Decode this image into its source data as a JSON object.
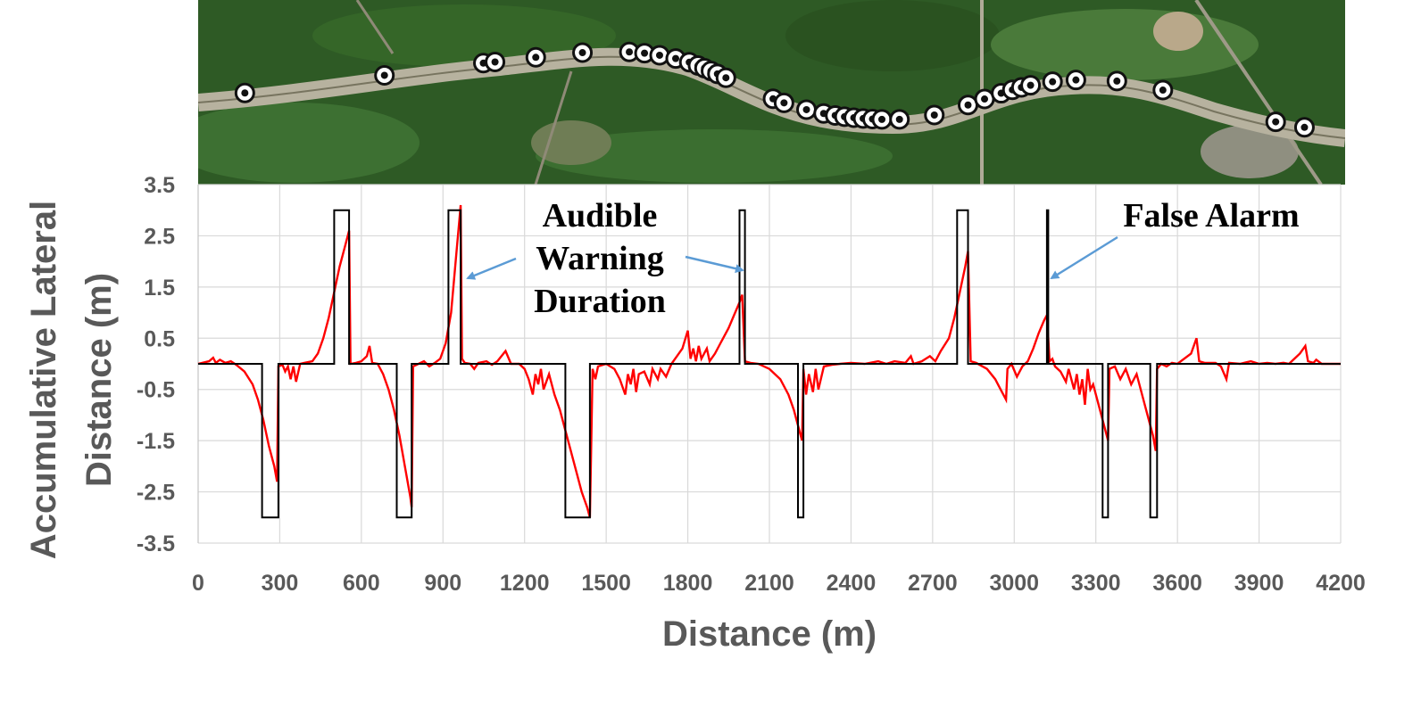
{
  "chart_data": {
    "type": "line",
    "xlabel": "Distance (m)",
    "ylabel_lines": [
      "Accumulative Lateral",
      "Distance (m)"
    ],
    "xlim": [
      0,
      4200
    ],
    "ylim": [
      -3.5,
      3.5
    ],
    "x_ticks": [
      0,
      300,
      600,
      900,
      1200,
      1500,
      1800,
      2100,
      2400,
      2700,
      3000,
      3300,
      3600,
      3900,
      4200
    ],
    "y_ticks": [
      3.5,
      2.5,
      1.5,
      0.5,
      -0.5,
      -1.5,
      -2.5,
      -3.5
    ],
    "y_tick_labels": [
      "3.5",
      "2.5",
      "1.5",
      "0.5",
      "-0.5",
      "-1.5",
      "-2.5",
      "-3.5"
    ],
    "grid": true,
    "series": [
      {
        "color": "#ff0000",
        "points": [
          [
            0,
            0
          ],
          [
            40,
            0.05
          ],
          [
            55,
            0.12
          ],
          [
            65,
            0.02
          ],
          [
            80,
            0.08
          ],
          [
            100,
            0.02
          ],
          [
            120,
            0.05
          ],
          [
            140,
            -0.02
          ],
          [
            170,
            -0.15
          ],
          [
            200,
            -0.4
          ],
          [
            220,
            -0.7
          ],
          [
            240,
            -1.1
          ],
          [
            260,
            -1.6
          ],
          [
            280,
            -2.0
          ],
          [
            290,
            -2.3
          ],
          [
            295,
            -0.05
          ],
          [
            310,
            -0.02
          ],
          [
            320,
            -0.15
          ],
          [
            330,
            -0.05
          ],
          [
            340,
            -0.3
          ],
          [
            350,
            -0.05
          ],
          [
            360,
            -0.35
          ],
          [
            375,
            0
          ],
          [
            390,
            0.02
          ],
          [
            420,
            0.05
          ],
          [
            440,
            0.2
          ],
          [
            460,
            0.5
          ],
          [
            480,
            0.9
          ],
          [
            500,
            1.4
          ],
          [
            520,
            1.9
          ],
          [
            540,
            2.3
          ],
          [
            555,
            2.6
          ],
          [
            560,
            0
          ],
          [
            580,
            0.02
          ],
          [
            600,
            0.05
          ],
          [
            620,
            0.15
          ],
          [
            630,
            0.35
          ],
          [
            640,
            0.02
          ],
          [
            660,
            0
          ],
          [
            680,
            -0.2
          ],
          [
            700,
            -0.5
          ],
          [
            720,
            -0.9
          ],
          [
            740,
            -1.4
          ],
          [
            760,
            -2.0
          ],
          [
            780,
            -2.6
          ],
          [
            785,
            -2.8
          ],
          [
            790,
            -0.05
          ],
          [
            810,
            0
          ],
          [
            830,
            0.05
          ],
          [
            850,
            -0.05
          ],
          [
            870,
            0.02
          ],
          [
            890,
            0.1
          ],
          [
            910,
            0.4
          ],
          [
            930,
            1.0
          ],
          [
            950,
            2.2
          ],
          [
            960,
            2.8
          ],
          [
            965,
            3.1
          ],
          [
            970,
            0.1
          ],
          [
            980,
            0.02
          ],
          [
            1000,
            0
          ],
          [
            1015,
            -0.1
          ],
          [
            1030,
            0.02
          ],
          [
            1060,
            0.05
          ],
          [
            1080,
            -0.02
          ],
          [
            1100,
            0.05
          ],
          [
            1130,
            0.25
          ],
          [
            1150,
            0
          ],
          [
            1180,
            0
          ],
          [
            1200,
            -0.1
          ],
          [
            1215,
            -0.3
          ],
          [
            1230,
            -0.6
          ],
          [
            1240,
            -0.2
          ],
          [
            1250,
            -0.4
          ],
          [
            1260,
            -0.1
          ],
          [
            1270,
            -0.5
          ],
          [
            1290,
            -0.2
          ],
          [
            1310,
            -0.6
          ],
          [
            1330,
            -0.9
          ],
          [
            1350,
            -1.3
          ],
          [
            1370,
            -1.7
          ],
          [
            1390,
            -2.1
          ],
          [
            1410,
            -2.5
          ],
          [
            1430,
            -2.8
          ],
          [
            1440,
            -3.0
          ],
          [
            1450,
            -0.1
          ],
          [
            1460,
            -0.3
          ],
          [
            1470,
            -0.05
          ],
          [
            1500,
            0
          ],
          [
            1530,
            -0.1
          ],
          [
            1550,
            -0.3
          ],
          [
            1570,
            -0.6
          ],
          [
            1580,
            -0.2
          ],
          [
            1590,
            -0.4
          ],
          [
            1600,
            -0.1
          ],
          [
            1610,
            -0.55
          ],
          [
            1620,
            -0.2
          ],
          [
            1640,
            -0.15
          ],
          [
            1660,
            -0.4
          ],
          [
            1670,
            -0.1
          ],
          [
            1690,
            -0.3
          ],
          [
            1700,
            -0.1
          ],
          [
            1720,
            -0.25
          ],
          [
            1740,
            0
          ],
          [
            1760,
            0.15
          ],
          [
            1780,
            0.3
          ],
          [
            1800,
            0.65
          ],
          [
            1810,
            0.1
          ],
          [
            1820,
            0.3
          ],
          [
            1830,
            0.05
          ],
          [
            1840,
            0.35
          ],
          [
            1850,
            0.1
          ],
          [
            1870,
            0.3
          ],
          [
            1880,
            0.05
          ],
          [
            1900,
            0.2
          ],
          [
            1920,
            0.4
          ],
          [
            1950,
            0.7
          ],
          [
            1970,
            0.95
          ],
          [
            1990,
            1.2
          ],
          [
            2000,
            1.35
          ],
          [
            2010,
            0.05
          ],
          [
            2030,
            0.02
          ],
          [
            2060,
            0
          ],
          [
            2100,
            -0.1
          ],
          [
            2140,
            -0.3
          ],
          [
            2170,
            -0.6
          ],
          [
            2190,
            -0.9
          ],
          [
            2210,
            -1.3
          ],
          [
            2220,
            -1.5
          ],
          [
            2225,
            -0.1
          ],
          [
            2235,
            -0.6
          ],
          [
            2245,
            -0.2
          ],
          [
            2260,
            -0.55
          ],
          [
            2270,
            -0.1
          ],
          [
            2280,
            -0.5
          ],
          [
            2300,
            -0.05
          ],
          [
            2330,
            -0.02
          ],
          [
            2360,
            0
          ],
          [
            2400,
            0.02
          ],
          [
            2450,
            0
          ],
          [
            2500,
            0.05
          ],
          [
            2530,
            0
          ],
          [
            2560,
            0.05
          ],
          [
            2600,
            0.02
          ],
          [
            2620,
            0.15
          ],
          [
            2630,
            0
          ],
          [
            2660,
            0.05
          ],
          [
            2690,
            0.15
          ],
          [
            2710,
            0.05
          ],
          [
            2730,
            0.25
          ],
          [
            2760,
            0.5
          ],
          [
            2780,
            0.9
          ],
          [
            2800,
            1.4
          ],
          [
            2820,
            1.9
          ],
          [
            2830,
            2.2
          ],
          [
            2840,
            0.05
          ],
          [
            2860,
            0.02
          ],
          [
            2900,
            -0.1
          ],
          [
            2930,
            -0.3
          ],
          [
            2950,
            -0.5
          ],
          [
            2970,
            -0.7
          ],
          [
            2975,
            -0.1
          ],
          [
            2990,
            0
          ],
          [
            3010,
            -0.25
          ],
          [
            3030,
            -0.05
          ],
          [
            3050,
            0.05
          ],
          [
            3070,
            0.3
          ],
          [
            3090,
            0.6
          ],
          [
            3110,
            0.85
          ],
          [
            3120,
            0.95
          ],
          [
            3130,
            0.05
          ],
          [
            3140,
            0.1
          ],
          [
            3150,
            -0.05
          ],
          [
            3170,
            -0.15
          ],
          [
            3190,
            -0.35
          ],
          [
            3200,
            -0.1
          ],
          [
            3220,
            -0.5
          ],
          [
            3230,
            -0.2
          ],
          [
            3240,
            -0.6
          ],
          [
            3250,
            -0.3
          ],
          [
            3260,
            -0.8
          ],
          [
            3270,
            -0.1
          ],
          [
            3280,
            -0.5
          ],
          [
            3290,
            -0.4
          ],
          [
            3310,
            -0.8
          ],
          [
            3330,
            -1.2
          ],
          [
            3345,
            -1.5
          ],
          [
            3350,
            -0.1
          ],
          [
            3370,
            -0.05
          ],
          [
            3390,
            -0.3
          ],
          [
            3410,
            -0.1
          ],
          [
            3430,
            -0.4
          ],
          [
            3450,
            -0.2
          ],
          [
            3470,
            -0.6
          ],
          [
            3490,
            -1.0
          ],
          [
            3510,
            -1.4
          ],
          [
            3520,
            -1.7
          ],
          [
            3525,
            -0.1
          ],
          [
            3540,
            0
          ],
          [
            3560,
            -0.05
          ],
          [
            3580,
            0.02
          ],
          [
            3600,
            0
          ],
          [
            3650,
            0.2
          ],
          [
            3670,
            0.5
          ],
          [
            3680,
            0.05
          ],
          [
            3700,
            0.02
          ],
          [
            3740,
            0.02
          ],
          [
            3760,
            -0.05
          ],
          [
            3780,
            -0.3
          ],
          [
            3790,
            0.02
          ],
          [
            3830,
            0
          ],
          [
            3870,
            0.05
          ],
          [
            3900,
            0
          ],
          [
            3930,
            0.02
          ],
          [
            3960,
            0
          ],
          [
            3990,
            0.02
          ],
          [
            4010,
            0
          ],
          [
            4030,
            0.1
          ],
          [
            4050,
            0.2
          ],
          [
            4070,
            0.35
          ],
          [
            4080,
            0.05
          ],
          [
            4100,
            0.02
          ],
          [
            4110,
            0.08
          ],
          [
            4130,
            0
          ],
          [
            4200,
            0
          ]
        ]
      },
      {
        "color": "#000000",
        "points": [
          [
            0,
            0
          ],
          [
            235,
            0
          ],
          [
            235,
            -3
          ],
          [
            295,
            -3
          ],
          [
            295,
            0
          ],
          [
            500,
            0
          ],
          [
            500,
            3
          ],
          [
            555,
            3
          ],
          [
            555,
            0
          ],
          [
            730,
            0
          ],
          [
            730,
            -3
          ],
          [
            785,
            -3
          ],
          [
            785,
            0
          ],
          [
            920,
            0
          ],
          [
            920,
            3
          ],
          [
            965,
            3
          ],
          [
            965,
            0
          ],
          [
            1350,
            0
          ],
          [
            1350,
            -3
          ],
          [
            1440,
            -3
          ],
          [
            1440,
            0
          ],
          [
            1990,
            0
          ],
          [
            1990,
            3
          ],
          [
            2010,
            3
          ],
          [
            2010,
            0
          ],
          [
            2205,
            0
          ],
          [
            2205,
            -3
          ],
          [
            2225,
            -3
          ],
          [
            2225,
            0
          ],
          [
            2790,
            0
          ],
          [
            2790,
            3
          ],
          [
            2830,
            3
          ],
          [
            2830,
            0
          ],
          [
            3120,
            0
          ],
          [
            3120,
            3
          ],
          [
            3125,
            3
          ],
          [
            3125,
            0
          ],
          [
            3325,
            0
          ],
          [
            3325,
            -3
          ],
          [
            3345,
            -3
          ],
          [
            3345,
            0
          ],
          [
            3500,
            0
          ],
          [
            3500,
            -3
          ],
          [
            3525,
            -3
          ],
          [
            3525,
            0
          ],
          [
            4200,
            0
          ]
        ]
      }
    ],
    "annotations": [
      {
        "lines": [
          "Audible",
          "Warning",
          "Duration"
        ],
        "arrows_to": [
          [
            980,
            1.7
          ],
          [
            2000,
            1.85
          ]
        ]
      },
      {
        "lines": [
          "False Alarm"
        ],
        "arrows_to": [
          [
            3130,
            1.7
          ]
        ]
      }
    ]
  },
  "map_strip": {
    "markers_count": 45
  }
}
